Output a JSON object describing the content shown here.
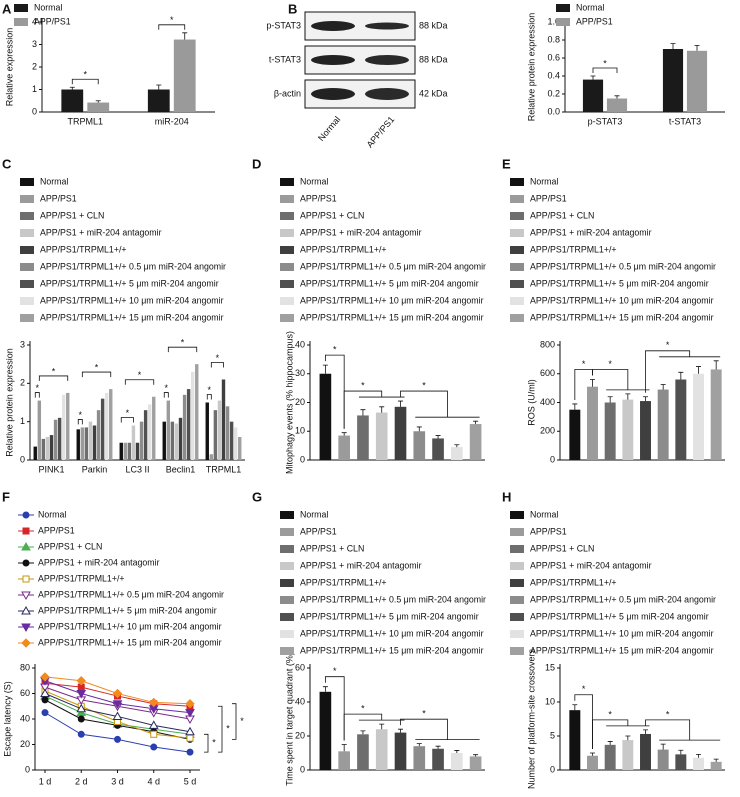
{
  "chart_data": [
    {
      "panel": "A",
      "type": "bar",
      "categories": [
        "TRPML1",
        "miR-204"
      ],
      "series": [
        {
          "name": "Normal",
          "color": "#1a1a1a",
          "values": [
            1.0,
            1.0
          ],
          "errors": [
            0.1,
            0.2
          ]
        },
        {
          "name": "APP/PS1",
          "color": "#9a9a9a",
          "values": [
            0.42,
            3.22
          ],
          "errors": [
            0.08,
            0.3
          ]
        }
      ],
      "y_label": "Relative expression",
      "ylim": [
        0,
        4
      ],
      "yticks": [
        0,
        1,
        2,
        3,
        4
      ],
      "significance": [
        "*",
        "*"
      ]
    },
    {
      "panel": "B",
      "type": "bar",
      "blot": {
        "rows": [
          {
            "label": "p-STAT3",
            "size": "88 kDa"
          },
          {
            "label": "t-STAT3",
            "size": "88 kDa"
          },
          {
            "label": "β-actin",
            "size": "42 kDa"
          }
        ],
        "lanes": [
          "Normal",
          "APP/PS1"
        ]
      },
      "categories": [
        "p-STAT3",
        "t-STAT3"
      ],
      "series": [
        {
          "name": "Normal",
          "color": "#1a1a1a",
          "values": [
            0.36,
            0.7
          ],
          "errors": [
            0.04,
            0.06
          ]
        },
        {
          "name": "APP/PS1",
          "color": "#9a9a9a",
          "values": [
            0.15,
            0.68
          ],
          "errors": [
            0.03,
            0.06
          ]
        }
      ],
      "y_label": "Relative protein expression",
      "ylim": [
        0,
        1
      ],
      "yticks": [
        {
          "value": 0,
          "label": "0.0"
        },
        0.2,
        0.4,
        0.6,
        0.8,
        {
          "value": 1,
          "label": "1.0"
        }
      ],
      "significance": [
        "*"
      ]
    },
    {
      "panel": "C",
      "type": "bar",
      "categories": [
        "PINK1",
        "Parkin",
        "LC3 II",
        "Beclin1",
        "TRPML1"
      ],
      "series": [
        {
          "name": "Normal",
          "color": "#111111",
          "values": [
            0.35,
            0.8,
            0.45,
            1.0,
            1.5
          ]
        },
        {
          "name": "APP/PS1",
          "color": "#9b9b9b",
          "values": [
            1.55,
            0.85,
            0.45,
            1.55,
            0.15
          ]
        },
        {
          "name": "APP/PS1 + CLN",
          "color": "#6e6e6e",
          "values": [
            0.55,
            0.85,
            0.45,
            1.0,
            1.3
          ]
        },
        {
          "name": "APP/PS1 + miR-204 antagomir",
          "color": "#c8c8c8",
          "values": [
            0.6,
            1.0,
            0.9,
            0.95,
            1.55
          ]
        },
        {
          "name": "APP/PS1/TRPML1+/+",
          "color": "#3f3f3f",
          "values": [
            0.65,
            0.9,
            0.45,
            1.1,
            2.1
          ]
        },
        {
          "name": "APP/PS1/TRPML1+/+ 0.5 μm miR-204 angomir",
          "color": "#8c8c8c",
          "values": [
            1.05,
            1.3,
            1.0,
            1.7,
            1.4
          ]
        },
        {
          "name": "APP/PS1/TRPML1+/+ 5 μm miR-204 angomir",
          "color": "#505050",
          "values": [
            1.1,
            1.6,
            1.3,
            1.85,
            1.0
          ]
        },
        {
          "name": "APP/PS1/TRPML1+/+ 10 μm miR-204 angomir",
          "color": "#e2e2e2",
          "values": [
            1.7,
            1.75,
            1.45,
            2.3,
            0.85
          ]
        },
        {
          "name": "APP/PS1/TRPML1+/+ 15 μm miR-204 angomir",
          "color": "#a0a0a0",
          "values": [
            1.75,
            1.85,
            1.65,
            2.5,
            0.6
          ]
        }
      ],
      "y_label": "Relative protein expression",
      "ylim": [
        0,
        3
      ],
      "yticks": [
        0,
        1,
        2,
        3
      ],
      "significance": [
        "*",
        "*",
        "*",
        "*",
        "*",
        "*",
        "*",
        "*",
        "*",
        "*"
      ]
    },
    {
      "panel": "D",
      "type": "bar",
      "categories": [
        "Normal",
        "APP/PS1",
        "APP/PS1 + CLN",
        "APP/PS1 + miR-204 antagomir",
        "APP/PS1/TRPML1+/+",
        "APP/PS1/TRPML1+/+ 0.5 μm miR-204 angomir",
        "APP/PS1/TRPML1+/+ 5 μm miR-204 angomir",
        "APP/PS1/TRPML1+/+ 10 μm miR-204 angomir",
        "APP/PS1/TRPML1+/+ 15 μm miR-204 angomir"
      ],
      "colors": [
        "#111111",
        "#9b9b9b",
        "#6e6e6e",
        "#c8c8c8",
        "#3f3f3f",
        "#8c8c8c",
        "#505050",
        "#e2e2e2",
        "#a0a0a0"
      ],
      "values": [
        30,
        8.5,
        15.5,
        16.5,
        18.5,
        10,
        7.5,
        4.5,
        12.5
      ],
      "errors": [
        3,
        1,
        2,
        2,
        2,
        1.5,
        1,
        0.8,
        1
      ],
      "y_label": "Mitophagy events (% hippocampus)",
      "ylim": [
        0,
        40
      ],
      "yticks": [
        0,
        10,
        20,
        30,
        40
      ],
      "significance": [
        "*",
        "*",
        "*"
      ]
    },
    {
      "panel": "E",
      "type": "bar",
      "categories": [
        "Normal",
        "APP/PS1",
        "APP/PS1 + CLN",
        "APP/PS1 + miR-204 antagomir",
        "APP/PS1/TRPML1+/+",
        "APP/PS1/TRPML1+/+ 0.5 μm miR-204 angomir",
        "APP/PS1/TRPML1+/+ 5 μm miR-204 angomir",
        "APP/PS1/TRPML1+/+ 10 μm miR-204 angomir",
        "APP/PS1/TRPML1+/+ 15 μm miR-204 angomir"
      ],
      "colors": [
        "#111111",
        "#9b9b9b",
        "#6e6e6e",
        "#c8c8c8",
        "#3f3f3f",
        "#8c8c8c",
        "#505050",
        "#e2e2e2",
        "#a0a0a0"
      ],
      "values": [
        350,
        510,
        400,
        420,
        410,
        490,
        560,
        600,
        630
      ],
      "errors": [
        40,
        50,
        40,
        40,
        30,
        35,
        50,
        50,
        60
      ],
      "y_label": "ROS (U/ml)",
      "ylim": [
        0,
        800
      ],
      "yticks": [
        0,
        200,
        400,
        600,
        800
      ],
      "significance": [
        "*",
        "*",
        "*"
      ]
    },
    {
      "panel": "F",
      "type": "line",
      "categories": [
        "1 d",
        "2 d",
        "3 d",
        "4 d",
        "5 d"
      ],
      "series": [
        {
          "name": "Normal",
          "color": "#2b3fae",
          "values": [
            45,
            28,
            24,
            18,
            14
          ]
        },
        {
          "name": "APP/PS1",
          "color": "#d62728",
          "values": [
            68,
            65,
            58,
            52,
            50
          ]
        },
        {
          "name": "APP/PS1 + CLN",
          "color": "#4caf50",
          "values": [
            58,
            45,
            36,
            32,
            28
          ]
        },
        {
          "name": "APP/PS1 + miR-204 antagomir",
          "color": "#111111",
          "values": [
            55,
            40,
            35,
            30,
            24
          ]
        },
        {
          "name": "APP/PS1/TRPML1+/+",
          "color": "#c8960c",
          "values": [
            62,
            50,
            38,
            28,
            25
          ]
        },
        {
          "name": "APP/PS1/TRPML1+/+ 0.5 μm miR-204 angomir",
          "color": "#7a2a8c",
          "values": [
            65,
            55,
            50,
            45,
            40
          ]
        },
        {
          "name": "APP/PS1/TRPML1+/+ 5 μm miR-204 angomir",
          "color": "#2a2a5e",
          "values": [
            60,
            48,
            42,
            35,
            30
          ]
        },
        {
          "name": "APP/PS1/TRPML1+/+ 10 μm miR-204 angomir",
          "color": "#6a2aa0",
          "values": [
            70,
            60,
            52,
            48,
            45
          ]
        },
        {
          "name": "APP/PS1/TRPML1+/+ 15 μm miR-204 angomir",
          "color": "#f28a1c",
          "values": [
            73,
            70,
            60,
            53,
            52
          ]
        }
      ],
      "y_label": "Escape latency (S)",
      "ylim": [
        0,
        80
      ],
      "yticks": [
        0,
        20,
        40,
        60,
        80
      ],
      "significance": [
        "*",
        "*",
        "*"
      ]
    },
    {
      "panel": "G",
      "type": "bar",
      "categories": [
        "Normal",
        "APP/PS1",
        "APP/PS1 + CLN",
        "APP/PS1 + miR-204 antagomir",
        "APP/PS1/TRPML1+/+",
        "APP/PS1/TRPML1+/+ 0.5 μm miR-204 angomir",
        "APP/PS1/TRPML1+/+ 5 μm miR-204 angomir",
        "APP/PS1/TRPML1+/+ 10 μm miR-204 angomir",
        "APP/PS1/TRPML1+/+ 15 μm miR-204 angomir"
      ],
      "colors": [
        "#111111",
        "#9b9b9b",
        "#6e6e6e",
        "#c8c8c8",
        "#3f3f3f",
        "#8c8c8c",
        "#505050",
        "#e2e2e2",
        "#a0a0a0"
      ],
      "values": [
        46,
        11,
        21,
        24,
        22,
        14,
        12.5,
        10,
        8
      ],
      "errors": [
        3,
        4,
        2,
        3,
        2,
        1.5,
        1.5,
        1.5,
        1
      ],
      "y_label": "Time spent in target quadrant (%)",
      "ylim": [
        0,
        60
      ],
      "yticks": [
        0,
        20,
        40,
        60
      ],
      "significance": [
        "*",
        "*",
        "*"
      ]
    },
    {
      "panel": "H",
      "type": "bar",
      "categories": [
        "Normal",
        "APP/PS1",
        "APP/PS1 + CLN",
        "APP/PS1 + miR-204 antagomir",
        "APP/PS1/TRPML1+/+",
        "APP/PS1/TRPML1+/+ 0.5 μm miR-204 angomir",
        "APP/PS1/TRPML1+/+ 5 μm miR-204 angomir",
        "APP/PS1/TRPML1+/+ 10 μm miR-204 angomir",
        "APP/PS1/TRPML1+/+ 15 μm miR-204 angomir"
      ],
      "colors": [
        "#111111",
        "#9b9b9b",
        "#6e6e6e",
        "#c8c8c8",
        "#3f3f3f",
        "#8c8c8c",
        "#505050",
        "#e2e2e2",
        "#a0a0a0"
      ],
      "values": [
        8.8,
        2.1,
        3.7,
        4.4,
        5.3,
        3.0,
        2.3,
        1.8,
        1.2
      ],
      "errors": [
        0.8,
        0.4,
        0.5,
        0.6,
        0.6,
        0.8,
        0.6,
        0.5,
        0.4
      ],
      "y_label": "Number of platform-site crossovers",
      "ylim": [
        0,
        15
      ],
      "yticks": [
        0,
        5,
        10,
        15
      ],
      "significance": [
        "*",
        "*",
        "*"
      ]
    }
  ]
}
